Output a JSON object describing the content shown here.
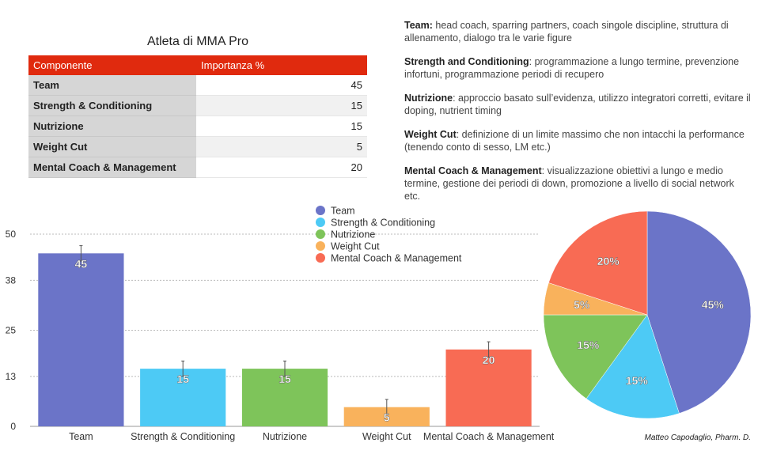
{
  "table": {
    "title": "Atleta di MMA Pro",
    "headers": [
      "Componente",
      "Importanza %"
    ],
    "rows": [
      {
        "name": "Team",
        "value": "45"
      },
      {
        "name": "Strength & Conditioning",
        "value": "15"
      },
      {
        "name": "Nutrizione",
        "value": "15"
      },
      {
        "name": "Weight Cut",
        "value": "5"
      },
      {
        "name": "Mental Coach & Management",
        "value": "20"
      }
    ]
  },
  "notes": [
    {
      "title": "Team:",
      "text": " head coach, sparring partners, coach singole discipline, struttura di allenamento, dialogo tra le varie figure"
    },
    {
      "title": "Strength and Conditioning",
      "text": ": programmazione a lungo termine, prevenzione infortuni, programmazione periodi di recupero"
    },
    {
      "title": "Nutrizione",
      "text": ": approccio basato sull’evidenza, utilizzo integratori corretti, evitare il doping, nutrient timing"
    },
    {
      "title": "Weight Cut",
      "text": ": definizione di un limite massimo che non intacchi la performance (tenendo conto di sesso, LM etc.)"
    },
    {
      "title": "Mental Coach & Management",
      "text": ": visualizzazione obiettivi a lungo e medio termine, gestione dei periodi di down, promozione a livello di social network etc."
    }
  ],
  "signature": "Matteo Capodaglio, Pharm. D.",
  "chart_data": [
    {
      "type": "bar",
      "categories": [
        "Team",
        "Strength & Conditioning",
        "Nutrizione",
        "Weight Cut",
        "Mental Coach & Management"
      ],
      "values": [
        45,
        15,
        15,
        5,
        20
      ],
      "data_labels": [
        "45",
        "15",
        "15",
        "5",
        "20"
      ],
      "error_bars": [
        2,
        2,
        2,
        2,
        2
      ],
      "colors": [
        "#6b74c8",
        "#4dcaf5",
        "#7ec45a",
        "#f9b25c",
        "#f86b54"
      ],
      "yticks": [
        0,
        13,
        25,
        38,
        50
      ],
      "ylim": [
        0,
        50
      ],
      "grid": true,
      "legend": {
        "position": "top-right",
        "labels": [
          "Team",
          "Strength & Conditioning",
          "Nutrizione",
          "Weight Cut",
          "Mental Coach & Management"
        ]
      }
    },
    {
      "type": "pie",
      "labels": [
        "Team",
        "Strength & Conditioning",
        "Nutrizione",
        "Weight Cut",
        "Mental Coach & Management"
      ],
      "values": [
        45,
        15,
        15,
        5,
        20
      ],
      "slice_labels": [
        "45%",
        "15%",
        "15%",
        "5%",
        "20%"
      ],
      "colors": [
        "#6b74c8",
        "#4dcaf5",
        "#7ec45a",
        "#f9b25c",
        "#f86b54"
      ]
    }
  ]
}
